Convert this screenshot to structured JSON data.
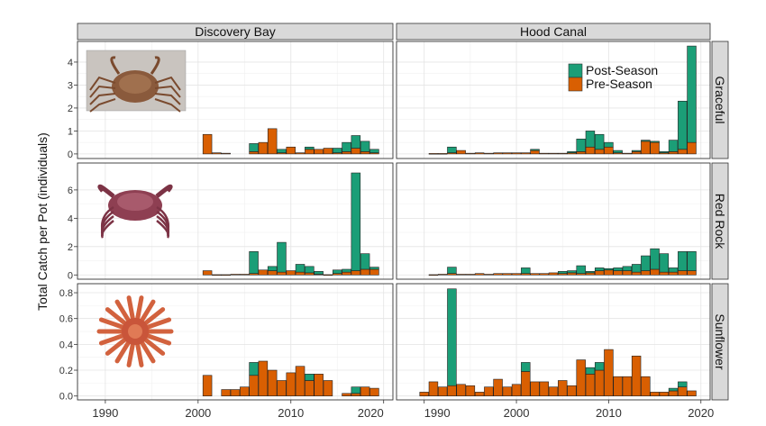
{
  "chart_data": {
    "type": "bar",
    "stacked": true,
    "ylabel": "Total Catch per Pot (individuals)",
    "xlim": [
      1987,
      2021
    ],
    "x_ticks": [
      1990,
      2000,
      2010,
      2020
    ],
    "grid": true,
    "legend": {
      "placement": "top-right of Hood Canal / Graceful panel",
      "entries": [
        {
          "label": "Post-Season",
          "color": "#1b9e77"
        },
        {
          "label": "Pre-Season",
          "color": "#d95f02"
        }
      ]
    },
    "column_labels": [
      "Discovery Bay",
      "Hood Canal"
    ],
    "row_labels": [
      "Graceful",
      "Red Rock",
      "Sunflower"
    ],
    "species_images": [
      "graceful-crab-photo",
      "red-rock-crab-photo",
      "sunflower-star-photo"
    ],
    "rows": [
      {
        "label": "Graceful",
        "ylim": [
          -0.2,
          4.9
        ],
        "y_ticks": [
          0,
          1,
          2,
          3,
          4
        ],
        "panels": [
          {
            "column": "Discovery Bay",
            "data": [
              {
                "x": 2001,
                "pre": 0.85,
                "post": 0
              },
              {
                "x": 2002,
                "pre": 0.05,
                "post": 0
              },
              {
                "x": 2003,
                "pre": 0.03,
                "post": 0
              },
              {
                "x": 2006,
                "pre": 0.1,
                "post": 0.35
              },
              {
                "x": 2007,
                "pre": 0.5,
                "post": 0
              },
              {
                "x": 2008,
                "pre": 1.1,
                "post": 0
              },
              {
                "x": 2009,
                "pre": 0.05,
                "post": 0.15
              },
              {
                "x": 2010,
                "pre": 0.3,
                "post": 0
              },
              {
                "x": 2011,
                "pre": 0.05,
                "post": 0
              },
              {
                "x": 2012,
                "pre": 0.2,
                "post": 0.1
              },
              {
                "x": 2013,
                "pre": 0.2,
                "post": 0
              },
              {
                "x": 2014,
                "pre": 0.25,
                "post": 0
              },
              {
                "x": 2015,
                "pre": 0.05,
                "post": 0.2
              },
              {
                "x": 2016,
                "pre": 0.1,
                "post": 0.4
              },
              {
                "x": 2017,
                "pre": 0.25,
                "post": 0.55
              },
              {
                "x": 2018,
                "pre": 0.1,
                "post": 0.45
              },
              {
                "x": 2019,
                "pre": 0.05,
                "post": 0.15
              }
            ]
          },
          {
            "column": "Hood Canal",
            "data": [
              {
                "x": 1991,
                "pre": 0.02,
                "post": 0
              },
              {
                "x": 1992,
                "pre": 0.02,
                "post": 0
              },
              {
                "x": 1993,
                "pre": 0.05,
                "post": 0.25
              },
              {
                "x": 1994,
                "pre": 0.15,
                "post": 0
              },
              {
                "x": 1995,
                "pre": 0.03,
                "post": 0
              },
              {
                "x": 1996,
                "pre": 0.05,
                "post": 0
              },
              {
                "x": 1997,
                "pre": 0.03,
                "post": 0
              },
              {
                "x": 1998,
                "pre": 0.05,
                "post": 0
              },
              {
                "x": 1999,
                "pre": 0.05,
                "post": 0
              },
              {
                "x": 2000,
                "pre": 0.05,
                "post": 0
              },
              {
                "x": 2001,
                "pre": 0.05,
                "post": 0
              },
              {
                "x": 2002,
                "pre": 0.15,
                "post": 0.05
              },
              {
                "x": 2003,
                "pre": 0.03,
                "post": 0
              },
              {
                "x": 2004,
                "pre": 0.03,
                "post": 0
              },
              {
                "x": 2005,
                "pre": 0.03,
                "post": 0
              },
              {
                "x": 2006,
                "pre": 0.05,
                "post": 0.05
              },
              {
                "x": 2007,
                "pre": 0.1,
                "post": 0.55
              },
              {
                "x": 2008,
                "pre": 0.3,
                "post": 0.7
              },
              {
                "x": 2009,
                "pre": 0.2,
                "post": 0.65
              },
              {
                "x": 2010,
                "pre": 0.3,
                "post": 0.2
              },
              {
                "x": 2011,
                "pre": 0.05,
                "post": 0.1
              },
              {
                "x": 2012,
                "pre": 0.03,
                "post": 0
              },
              {
                "x": 2013,
                "pre": 0.1,
                "post": 0.05
              },
              {
                "x": 2014,
                "pre": 0.55,
                "post": 0.05
              },
              {
                "x": 2015,
                "pre": 0.5,
                "post": 0.05
              },
              {
                "x": 2016,
                "pre": 0.05,
                "post": 0.05
              },
              {
                "x": 2017,
                "pre": 0.1,
                "post": 0.5
              },
              {
                "x": 2018,
                "pre": 0.2,
                "post": 2.1
              },
              {
                "x": 2019,
                "pre": 0.5,
                "post": 4.2
              }
            ]
          }
        ]
      },
      {
        "label": "Red Rock",
        "ylim": [
          -0.3,
          7.9
        ],
        "y_ticks": [
          0,
          2,
          4,
          6
        ],
        "panels": [
          {
            "column": "Discovery Bay",
            "data": [
              {
                "x": 2001,
                "pre": 0.3,
                "post": 0
              },
              {
                "x": 2002,
                "pre": 0.02,
                "post": 0
              },
              {
                "x": 2003,
                "pre": 0.02,
                "post": 0
              },
              {
                "x": 2004,
                "pre": 0.05,
                "post": 0
              },
              {
                "x": 2005,
                "pre": 0.05,
                "post": 0
              },
              {
                "x": 2006,
                "pre": 0.1,
                "post": 1.55
              },
              {
                "x": 2007,
                "pre": 0.35,
                "post": 0
              },
              {
                "x": 2008,
                "pre": 0.3,
                "post": 0.3
              },
              {
                "x": 2009,
                "pre": 0.2,
                "post": 2.1
              },
              {
                "x": 2010,
                "pre": 0.3,
                "post": 0
              },
              {
                "x": 2011,
                "pre": 0.2,
                "post": 0.55
              },
              {
                "x": 2012,
                "pre": 0.15,
                "post": 0.45
              },
              {
                "x": 2013,
                "pre": 0.05,
                "post": 0.2
              },
              {
                "x": 2014,
                "pre": 0.02,
                "post": 0
              },
              {
                "x": 2015,
                "pre": 0.1,
                "post": 0.25
              },
              {
                "x": 2016,
                "pre": 0.2,
                "post": 0.2
              },
              {
                "x": 2017,
                "pre": 0.3,
                "post": 6.9
              },
              {
                "x": 2018,
                "pre": 0.4,
                "post": 1.1
              },
              {
                "x": 2019,
                "pre": 0.4,
                "post": 0.15
              }
            ]
          },
          {
            "column": "Hood Canal",
            "data": [
              {
                "x": 1991,
                "pre": 0.02,
                "post": 0
              },
              {
                "x": 1992,
                "pre": 0.05,
                "post": 0
              },
              {
                "x": 1993,
                "pre": 0.1,
                "post": 0.45
              },
              {
                "x": 1994,
                "pre": 0.05,
                "post": 0
              },
              {
                "x": 1995,
                "pre": 0.05,
                "post": 0
              },
              {
                "x": 1996,
                "pre": 0.1,
                "post": 0
              },
              {
                "x": 1997,
                "pre": 0.05,
                "post": 0
              },
              {
                "x": 1998,
                "pre": 0.1,
                "post": 0
              },
              {
                "x": 1999,
                "pre": 0.1,
                "post": 0
              },
              {
                "x": 2000,
                "pre": 0.1,
                "post": 0
              },
              {
                "x": 2001,
                "pre": 0.1,
                "post": 0.4
              },
              {
                "x": 2002,
                "pre": 0.1,
                "post": 0
              },
              {
                "x": 2003,
                "pre": 0.1,
                "post": 0
              },
              {
                "x": 2004,
                "pre": 0.15,
                "post": 0
              },
              {
                "x": 2005,
                "pre": 0.1,
                "post": 0.15
              },
              {
                "x": 2006,
                "pre": 0.15,
                "post": 0.15
              },
              {
                "x": 2007,
                "pre": 0.1,
                "post": 0.55
              },
              {
                "x": 2008,
                "pre": 0.15,
                "post": 0.1
              },
              {
                "x": 2009,
                "pre": 0.3,
                "post": 0.2
              },
              {
                "x": 2010,
                "pre": 0.35,
                "post": 0.1
              },
              {
                "x": 2011,
                "pre": 0.3,
                "post": 0.2
              },
              {
                "x": 2012,
                "pre": 0.3,
                "post": 0.3
              },
              {
                "x": 2013,
                "pre": 0.2,
                "post": 0.55
              },
              {
                "x": 2014,
                "pre": 0.3,
                "post": 1.05
              },
              {
                "x": 2015,
                "pre": 0.4,
                "post": 1.45
              },
              {
                "x": 2016,
                "pre": 0.2,
                "post": 1.3
              },
              {
                "x": 2017,
                "pre": 0.2,
                "post": 0.3
              },
              {
                "x": 2018,
                "pre": 0.3,
                "post": 1.35
              },
              {
                "x": 2019,
                "pre": 0.3,
                "post": 1.35
              }
            ]
          }
        ]
      },
      {
        "label": "Sunflower",
        "ylim": [
          -0.03,
          0.87
        ],
        "y_ticks": [
          0.0,
          0.2,
          0.4,
          0.6,
          0.8
        ],
        "y_tick_labels": [
          "0.0",
          "0.2",
          "0.4",
          "0.6",
          "0.8"
        ],
        "panels": [
          {
            "column": "Discovery Bay",
            "data": [
              {
                "x": 2001,
                "pre": 0.16,
                "post": 0
              },
              {
                "x": 2003,
                "pre": 0.05,
                "post": 0
              },
              {
                "x": 2004,
                "pre": 0.05,
                "post": 0
              },
              {
                "x": 2005,
                "pre": 0.07,
                "post": 0
              },
              {
                "x": 2006,
                "pre": 0.16,
                "post": 0.1
              },
              {
                "x": 2007,
                "pre": 0.27,
                "post": 0
              },
              {
                "x": 2008,
                "pre": 0.2,
                "post": 0
              },
              {
                "x": 2009,
                "pre": 0.12,
                "post": 0
              },
              {
                "x": 2010,
                "pre": 0.18,
                "post": 0
              },
              {
                "x": 2011,
                "pre": 0.23,
                "post": 0
              },
              {
                "x": 2012,
                "pre": 0.12,
                "post": 0.05
              },
              {
                "x": 2013,
                "pre": 0.17,
                "post": 0
              },
              {
                "x": 2014,
                "pre": 0.12,
                "post": 0
              },
              {
                "x": 2016,
                "pre": 0.02,
                "post": 0
              },
              {
                "x": 2017,
                "pre": 0.02,
                "post": 0.05
              },
              {
                "x": 2018,
                "pre": 0.07,
                "post": 0
              },
              {
                "x": 2019,
                "pre": 0.06,
                "post": 0
              }
            ]
          },
          {
            "column": "Hood Canal",
            "data": [
              {
                "x": 1990,
                "pre": 0.03,
                "post": 0
              },
              {
                "x": 1991,
                "pre": 0.11,
                "post": 0
              },
              {
                "x": 1992,
                "pre": 0.07,
                "post": 0
              },
              {
                "x": 1993,
                "pre": 0.08,
                "post": 0.75
              },
              {
                "x": 1994,
                "pre": 0.09,
                "post": 0
              },
              {
                "x": 1995,
                "pre": 0.08,
                "post": 0
              },
              {
                "x": 1996,
                "pre": 0.03,
                "post": 0
              },
              {
                "x": 1997,
                "pre": 0.07,
                "post": 0
              },
              {
                "x": 1998,
                "pre": 0.13,
                "post": 0
              },
              {
                "x": 1999,
                "pre": 0.07,
                "post": 0
              },
              {
                "x": 2000,
                "pre": 0.09,
                "post": 0
              },
              {
                "x": 2001,
                "pre": 0.19,
                "post": 0.07
              },
              {
                "x": 2002,
                "pre": 0.11,
                "post": 0
              },
              {
                "x": 2003,
                "pre": 0.11,
                "post": 0
              },
              {
                "x": 2004,
                "pre": 0.07,
                "post": 0
              },
              {
                "x": 2005,
                "pre": 0.12,
                "post": 0
              },
              {
                "x": 2006,
                "pre": 0.08,
                "post": 0
              },
              {
                "x": 2007,
                "pre": 0.28,
                "post": 0
              },
              {
                "x": 2008,
                "pre": 0.17,
                "post": 0.05
              },
              {
                "x": 2009,
                "pre": 0.2,
                "post": 0.06
              },
              {
                "x": 2010,
                "pre": 0.36,
                "post": 0
              },
              {
                "x": 2011,
                "pre": 0.15,
                "post": 0
              },
              {
                "x": 2012,
                "pre": 0.15,
                "post": 0
              },
              {
                "x": 2013,
                "pre": 0.31,
                "post": 0
              },
              {
                "x": 2014,
                "pre": 0.15,
                "post": 0
              },
              {
                "x": 2015,
                "pre": 0.03,
                "post": 0
              },
              {
                "x": 2016,
                "pre": 0.03,
                "post": 0
              },
              {
                "x": 2017,
                "pre": 0.04,
                "post": 0.02
              },
              {
                "x": 2018,
                "pre": 0.07,
                "post": 0.04
              },
              {
                "x": 2019,
                "pre": 0.04,
                "post": 0
              }
            ]
          }
        ]
      }
    ]
  }
}
